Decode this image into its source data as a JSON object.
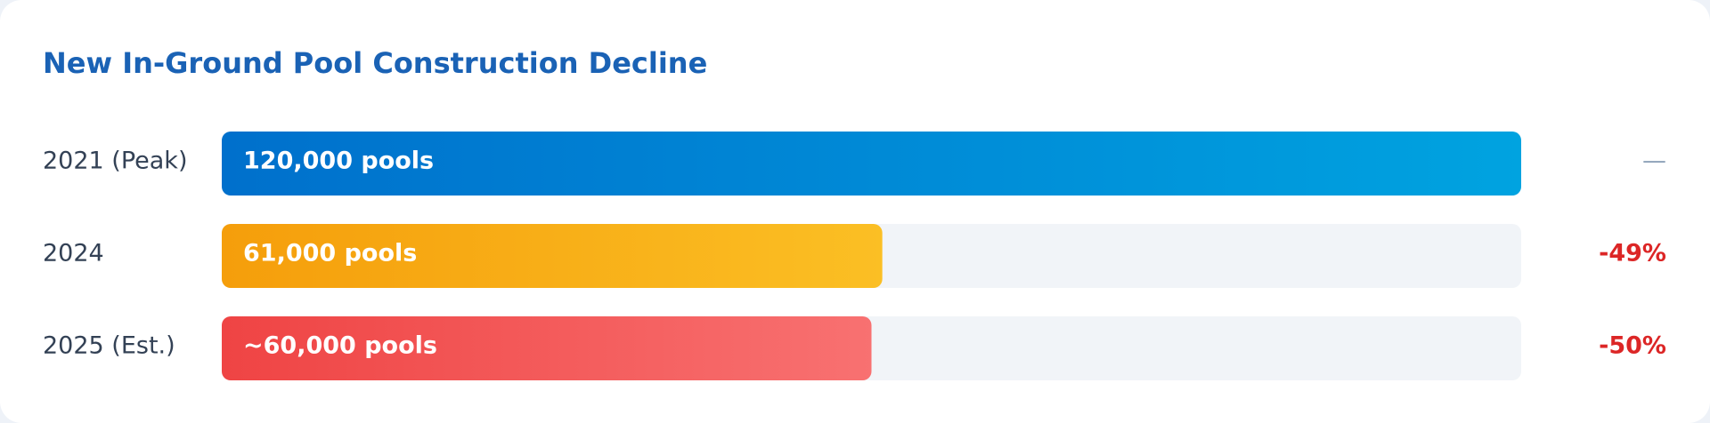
{
  "chart_data": {
    "type": "bar",
    "orientation": "horizontal",
    "title": "New In-Ground Pool Construction Decline",
    "categories": [
      "2021 (Peak)",
      "2024",
      "2025 (Est.)"
    ],
    "values": [
      120000,
      61000,
      60000
    ],
    "value_labels": [
      "120,000 pools",
      "61,000 pools",
      "~60,000 pools"
    ],
    "changes": [
      "—",
      "-49%",
      "-50%"
    ],
    "colors": [
      [
        "#0070cc",
        "#00a3e0"
      ],
      [
        "#f59e0b",
        "#fbbf24"
      ],
      [
        "#ef4444",
        "#f87171"
      ]
    ],
    "xlim": [
      0,
      120000
    ]
  }
}
